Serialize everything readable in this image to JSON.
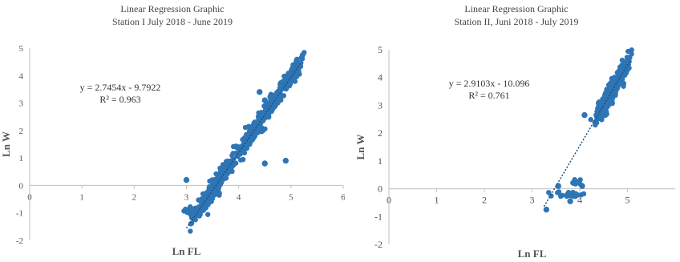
{
  "chart_data": [
    {
      "type": "scatter",
      "title": "Linear Regression Graphic",
      "subtitle": "Station  I July 2018 - June 2019",
      "xlabel": "Ln FL",
      "ylabel": "Ln W",
      "xlim": [
        0,
        6
      ],
      "ylim": [
        -2,
        5
      ],
      "x_ticks": [
        "0",
        "1",
        "2",
        "3",
        "4",
        "5",
        "6"
      ],
      "y_ticks": [
        "-2",
        "-1",
        "0",
        "1",
        "2",
        "3",
        "4",
        "5"
      ],
      "grid": "none",
      "series_color": "#2e75b6",
      "equation": "y = 2.7454x - 9.7922",
      "r_squared": "R² = 0.963",
      "trendline": {
        "slope": 2.7454,
        "intercept": -9.7922,
        "x_start": 3.0,
        "x_end": 5.2
      },
      "clusters": [
        {
          "x_center": 3.1,
          "y_center": -0.9,
          "spread_x": 0.12,
          "spread_y": 0.12,
          "count": 30
        },
        {
          "x_center": 3.4,
          "y_center": -0.3,
          "spread_x": 0.25,
          "spread_y": 0.45,
          "count": 120
        },
        {
          "x_center": 3.7,
          "y_center": 0.4,
          "spread_x": 0.2,
          "spread_y": 0.5,
          "count": 90
        },
        {
          "x_center": 4.2,
          "y_center": 1.6,
          "spread_x": 0.25,
          "spread_y": 0.5,
          "count": 130
        },
        {
          "x_center": 4.6,
          "y_center": 2.7,
          "spread_x": 0.2,
          "spread_y": 0.4,
          "count": 120
        },
        {
          "x_center": 5.0,
          "y_center": 4.0,
          "spread_x": 0.18,
          "spread_y": 0.35,
          "count": 110
        }
      ],
      "outliers": [
        [
          4.4,
          3.4
        ],
        [
          4.9,
          0.9
        ],
        [
          4.5,
          0.8
        ],
        [
          3.0,
          0.2
        ],
        [
          4.5,
          3.1
        ]
      ]
    },
    {
      "type": "scatter",
      "title": "Linear Regression Graphic",
      "subtitle": "Station II, Juni 2018 - July 2019",
      "xlabel": "Ln FL",
      "ylabel": "Ln W",
      "xlim": [
        0,
        6
      ],
      "ylim": [
        -2,
        5
      ],
      "x_ticks": [
        "0",
        "1",
        "2",
        "3",
        "4",
        "5"
      ],
      "y_ticks": [
        "-2",
        "-1",
        "0",
        "1",
        "2",
        "3",
        "4",
        "5"
      ],
      "grid": "none",
      "series_color": "#2e75b6",
      "equation": "y = 2.9103x - 10.096",
      "r_squared": "R² = 0.761",
      "trendline": {
        "slope": 2.9103,
        "intercept": -10.096,
        "x_start": 3.25,
        "x_end": 5.05
      },
      "clusters": [
        {
          "x_center": 4.5,
          "y_center": 2.6,
          "spread_x": 0.15,
          "spread_y": 0.3,
          "count": 110
        },
        {
          "x_center": 4.7,
          "y_center": 3.4,
          "spread_x": 0.15,
          "spread_y": 0.3,
          "count": 130
        },
        {
          "x_center": 4.9,
          "y_center": 4.1,
          "spread_x": 0.12,
          "spread_y": 0.25,
          "count": 110
        },
        {
          "x_center": 3.8,
          "y_center": -0.2,
          "spread_x": 0.25,
          "spread_y": 0.1,
          "count": 25
        },
        {
          "x_center": 3.9,
          "y_center": 0.25,
          "spread_x": 0.1,
          "spread_y": 0.1,
          "count": 10
        }
      ],
      "outliers": [
        [
          3.3,
          -0.75
        ],
        [
          3.55,
          0.1
        ],
        [
          3.8,
          -0.45
        ],
        [
          4.1,
          2.65
        ],
        [
          4.05,
          0.1
        ]
      ]
    }
  ]
}
